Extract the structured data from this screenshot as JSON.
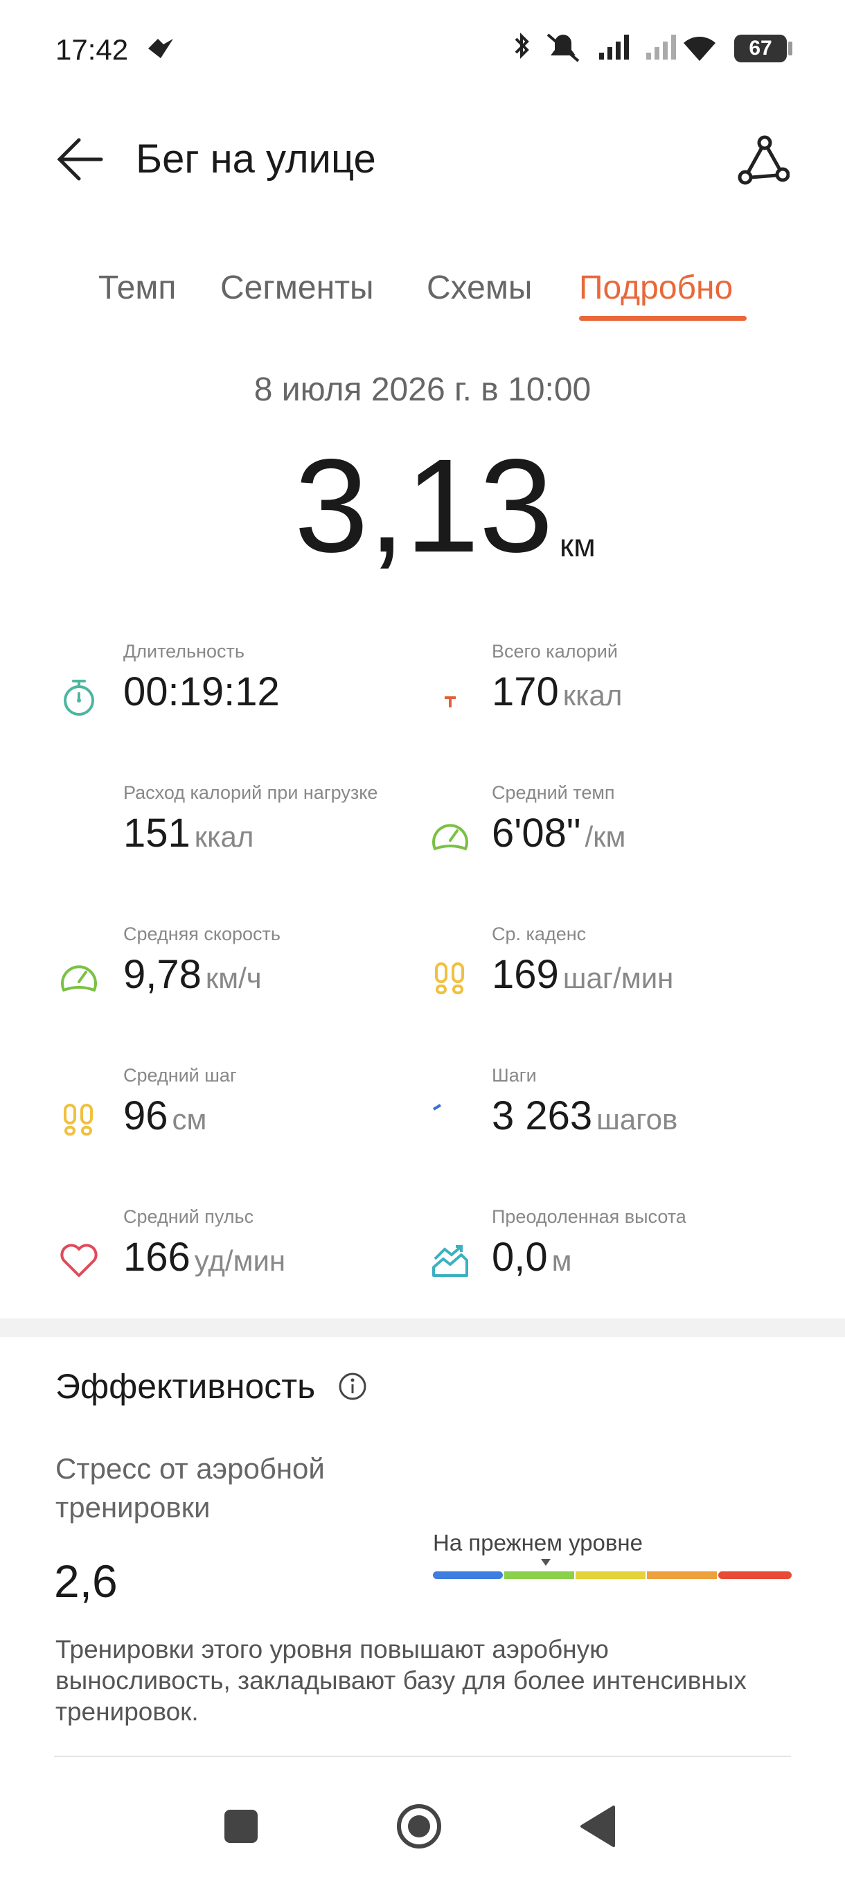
{
  "status": {
    "time": "17:42",
    "battery": "67"
  },
  "header": {
    "title": "Бег на улице"
  },
  "tabs": [
    "Темп",
    "Сегменты",
    "Схемы",
    "Подробно"
  ],
  "date": "8 июля 2026 г. в 10:00",
  "distance": {
    "value": "3,13",
    "unit": "км"
  },
  "metrics": [
    {
      "label": "Длительность",
      "value": "00:19:12",
      "unit": null
    },
    {
      "label": "Всего калорий",
      "value": "170",
      "unit": "ккал"
    },
    {
      "label": "Расход калорий при нагрузке",
      "value": "151",
      "unit": "ккал"
    },
    {
      "label": "Средний темп",
      "value": "6'08\"",
      "unit": "/км"
    },
    {
      "label": "Средняя скорость",
      "value": "9,78",
      "unit": "км/ч"
    },
    {
      "label": "Ср. каденс",
      "value": "169",
      "unit": "шаг/мин"
    },
    {
      "label": "Средний шаг",
      "value": "96",
      "unit": "см"
    },
    {
      "label": "Шаги",
      "value": "3 263",
      "unit": "шагов"
    },
    {
      "label": "Средний пульс",
      "value": "166",
      "unit": "уд/мин"
    },
    {
      "label": "Преодоленная высота",
      "value": "0,0",
      "unit": "м"
    }
  ],
  "efficiency": {
    "title": "Эффективность",
    "stress_label": "Стресс от аэробной тренировки",
    "stress_value": "2,6",
    "level": "На прежнем уровне",
    "description": "Тренировки этого уровня повышают аэробную выносливость, закладывают базу для более интенсивных тренировок."
  }
}
